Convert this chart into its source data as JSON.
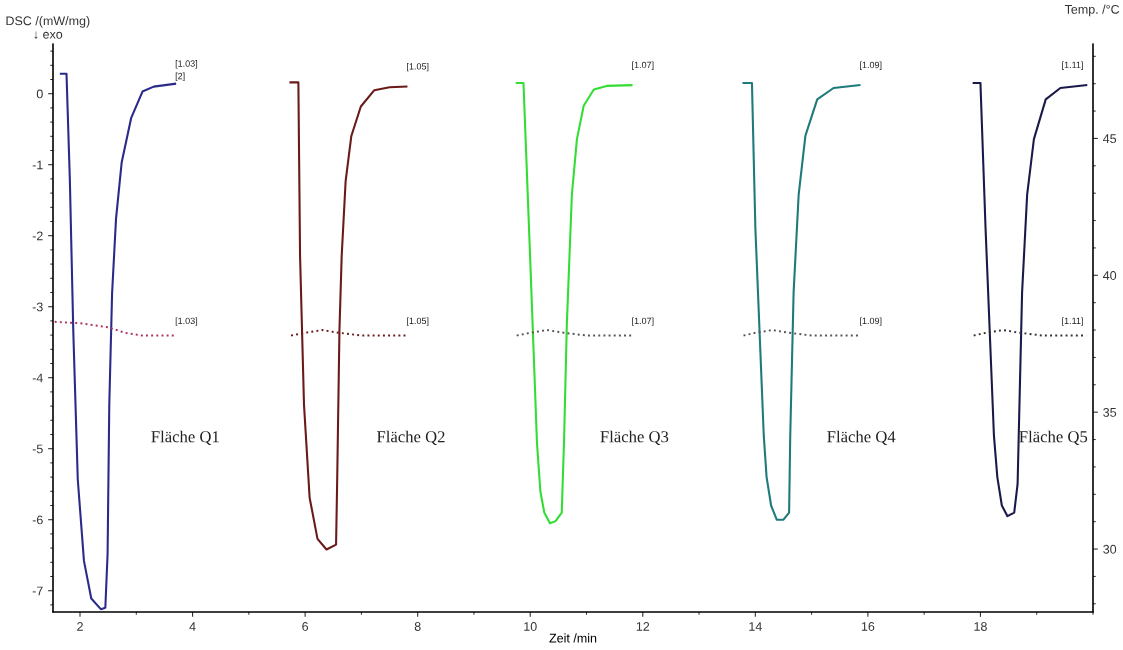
{
  "chart_data": {
    "type": "line",
    "xlabel": "Zeit /min",
    "ylabel": "DSC /(mW/mg)\n↓ exo",
    "y2label": "Temp. /°C",
    "xlim": [
      1.52,
      20.0
    ],
    "xticks": [
      2,
      4,
      6,
      8,
      10,
      12,
      14,
      16,
      18
    ],
    "ylim": [
      -7.3,
      0.7
    ],
    "yticks": [
      -7,
      -6,
      -5,
      -4,
      -3,
      -2,
      -1,
      0
    ],
    "y2lim": [
      27.7,
      48.45
    ],
    "y2ticks": [
      30,
      35,
      40,
      45
    ],
    "grid": false,
    "marker": "none",
    "series": [
      {
        "color": "#2a2a8a",
        "line_style": "solid",
        "x": [
          1.66,
          1.76,
          1.82,
          1.88,
          1.96,
          2.07,
          2.2,
          2.37,
          2.45,
          2.49,
          2.52,
          2.57,
          2.64,
          2.74,
          2.91,
          3.11,
          3.31,
          3.69
        ],
        "values": [
          0.28,
          0.28,
          -1.23,
          -3.33,
          -5.43,
          -6.58,
          -7.11,
          -7.26,
          -7.24,
          -6.48,
          -4.38,
          -2.81,
          -1.76,
          -0.97,
          -0.34,
          0.03,
          0.1,
          0.14
        ]
      },
      {
        "color": "#6b1a1a",
        "line_style": "solid",
        "x": [
          5.74,
          5.88,
          5.91,
          5.98,
          6.08,
          6.22,
          6.38,
          6.55,
          6.57,
          6.61,
          6.65,
          6.72,
          6.82,
          6.99,
          7.23,
          7.5,
          7.8
        ],
        "values": [
          0.16,
          0.16,
          -2.28,
          -4.38,
          -5.69,
          -6.27,
          -6.42,
          -6.35,
          -5.43,
          -3.33,
          -2.28,
          -1.23,
          -0.6,
          -0.18,
          0.05,
          0.09,
          0.1
        ]
      },
      {
        "color": "#33dd33",
        "line_style": "solid",
        "x": [
          9.76,
          9.88,
          10.0,
          10.12,
          10.18,
          10.25,
          10.35,
          10.45,
          10.56,
          10.58,
          10.6,
          10.65,
          10.74,
          10.83,
          10.95,
          11.13,
          11.36,
          11.8
        ],
        "values": [
          0.15,
          0.15,
          -2.34,
          -4.92,
          -5.6,
          -5.9,
          -6.05,
          -6.02,
          -5.9,
          -5.4,
          -4.92,
          -3.26,
          -1.42,
          -0.64,
          -0.17,
          0.06,
          0.11,
          0.12
        ]
      },
      {
        "color": "#1f7a7a",
        "line_style": "solid",
        "x": [
          13.79,
          13.94,
          14.0,
          14.15,
          14.2,
          14.28,
          14.38,
          14.5,
          14.6,
          14.62,
          14.68,
          14.77,
          14.89,
          15.1,
          15.39,
          15.85
        ],
        "values": [
          0.15,
          0.15,
          -1.88,
          -4.82,
          -5.4,
          -5.8,
          -6.0,
          -6.0,
          -5.9,
          -4.82,
          -2.8,
          -1.42,
          -0.59,
          -0.08,
          0.08,
          0.12
        ]
      },
      {
        "color": "#1a1a4a",
        "line_style": "solid",
        "x": [
          17.88,
          18.0,
          18.09,
          18.24,
          18.3,
          18.38,
          18.48,
          18.6,
          18.66,
          18.68,
          18.74,
          18.83,
          18.95,
          19.16,
          19.42,
          19.88
        ],
        "values": [
          0.15,
          0.15,
          -1.88,
          -4.82,
          -5.4,
          -5.8,
          -5.95,
          -5.9,
          -5.5,
          -4.82,
          -2.8,
          -1.42,
          -0.64,
          -0.08,
          0.08,
          0.12
        ]
      },
      {
        "color": "#b03060",
        "line_style": "dotted",
        "axis": "y2",
        "x": [
          1.55,
          2.0,
          2.5,
          2.8,
          3.1,
          3.69
        ],
        "values": [
          38.3,
          38.25,
          38.1,
          37.9,
          37.8,
          37.8
        ]
      },
      {
        "color": "#6b1a1a",
        "line_style": "dotted",
        "axis": "y2",
        "x": [
          5.75,
          6.0,
          6.3,
          6.6,
          7.0,
          7.8
        ],
        "values": [
          37.8,
          37.9,
          38.0,
          37.9,
          37.8,
          37.8
        ]
      },
      {
        "color": "#555555",
        "line_style": "dotted",
        "axis": "y2",
        "x": [
          9.76,
          10.0,
          10.3,
          10.6,
          11.0,
          11.8
        ],
        "values": [
          37.8,
          37.9,
          38.0,
          37.9,
          37.8,
          37.8
        ]
      },
      {
        "color": "#555555",
        "line_style": "dotted",
        "axis": "y2",
        "x": [
          13.79,
          14.0,
          14.3,
          14.6,
          15.0,
          15.85
        ],
        "values": [
          37.8,
          37.9,
          38.0,
          37.9,
          37.8,
          37.8
        ]
      },
      {
        "color": "#333333",
        "line_style": "dotted",
        "axis": "y2",
        "x": [
          17.88,
          18.1,
          18.4,
          18.7,
          19.1,
          19.88
        ],
        "values": [
          37.8,
          37.9,
          38.0,
          37.9,
          37.8,
          37.8
        ]
      }
    ],
    "annotations": [
      {
        "text": "[1.03]",
        "x": 3.69,
        "y": 0.14
      },
      {
        "text": "[2]",
        "x": 3.69,
        "y": 0.14
      },
      {
        "text": "[1.05]",
        "x": 7.8,
        "y": 0.1
      },
      {
        "text": "[1.07]",
        "x": 11.8,
        "y": 0.12
      },
      {
        "text": "[1.09]",
        "x": 15.85,
        "y": 0.12
      },
      {
        "text": "[1.11]",
        "x": 19.88,
        "y": 0.12
      },
      "[1.03]",
      "[1.05]",
      "[1.07]",
      "[1.09]",
      "[1.11]",
      "Fläche Q1",
      "Fläche Q2",
      "Fläche Q3",
      "Fläche Q4",
      "Fläche Q5"
    ]
  }
}
